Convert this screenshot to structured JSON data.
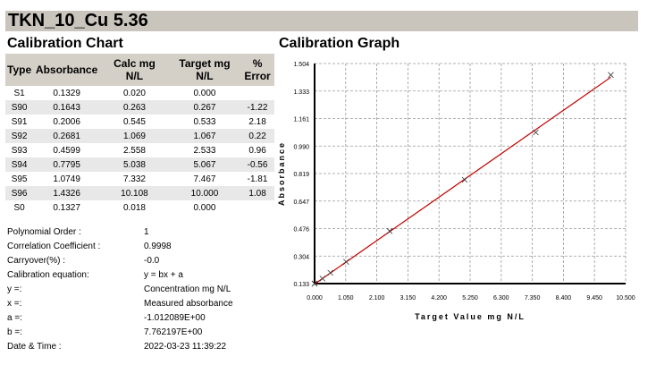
{
  "title": "TKN_10_Cu 5.36",
  "chart_title": "Calibration Chart",
  "graph_title": "Calibration Graph",
  "table": {
    "headers": [
      "Type",
      "Absorbance",
      "Calc mg N/L",
      "Target mg N/L",
      "% Error"
    ],
    "rows": [
      [
        "S1",
        "0.1329",
        "0.020",
        "0.000",
        ""
      ],
      [
        "S90",
        "0.1643",
        "0.263",
        "0.267",
        "-1.22"
      ],
      [
        "S91",
        "0.2006",
        "0.545",
        "0.533",
        "2.18"
      ],
      [
        "S92",
        "0.2681",
        "1.069",
        "1.067",
        "0.22"
      ],
      [
        "S93",
        "0.4599",
        "2.558",
        "2.533",
        "0.96"
      ],
      [
        "S94",
        "0.7795",
        "5.038",
        "5.067",
        "-0.56"
      ],
      [
        "S95",
        "1.0749",
        "7.332",
        "7.467",
        "-1.81"
      ],
      [
        "S96",
        "1.4326",
        "10.108",
        "10.000",
        "1.08"
      ],
      [
        "S0",
        "0.1327",
        "0.018",
        "0.000",
        ""
      ]
    ]
  },
  "info": [
    {
      "label": "Polynomial Order :",
      "value": "1"
    },
    {
      "label": "Correlation Coefficient :",
      "value": "0.9998"
    },
    {
      "label": "Carryover(%) :",
      "value": "-0.0"
    },
    {
      "label": "Calibration equation:",
      "value": "y = bx + a"
    },
    {
      "label": "y =:",
      "value": "Concentration mg N/L"
    },
    {
      "label": "x =:",
      "value": "Measured absorbance"
    },
    {
      "label": "a =:",
      "value": "-1.012089E+00"
    },
    {
      "label": "b =:",
      "value": "7.762197E+00"
    },
    {
      "label": "Date & Time :",
      "value": "2022-03-23 11:39:22"
    }
  ],
  "chart_data": {
    "type": "scatter",
    "title": "Calibration Graph",
    "xlabel": "Target Value mg N/L",
    "ylabel": "Absorbance",
    "xlim": [
      0,
      10.5
    ],
    "ylim": [
      0.133,
      1.504
    ],
    "xticks": [
      "0.000",
      "1.050",
      "2.100",
      "3.150",
      "4.200",
      "5.250",
      "6.300",
      "7.350",
      "8.400",
      "9.450",
      "10.500"
    ],
    "yticks": [
      "0.133",
      "0.304",
      "0.476",
      "0.647",
      "0.819",
      "0.990",
      "1.161",
      "1.333",
      "1.504"
    ],
    "grid": true,
    "points": [
      [
        0,
        0.1329
      ],
      [
        0.267,
        0.1643
      ],
      [
        0.533,
        0.2006
      ],
      [
        1.067,
        0.2681
      ],
      [
        2.533,
        0.4599
      ],
      [
        5.067,
        0.7795
      ],
      [
        7.467,
        1.0749
      ],
      [
        10,
        1.4326
      ],
      [
        0,
        0.1327
      ]
    ],
    "fit_line": {
      "a": -1.012089,
      "b": 7.762197,
      "color": "#c00000"
    }
  }
}
